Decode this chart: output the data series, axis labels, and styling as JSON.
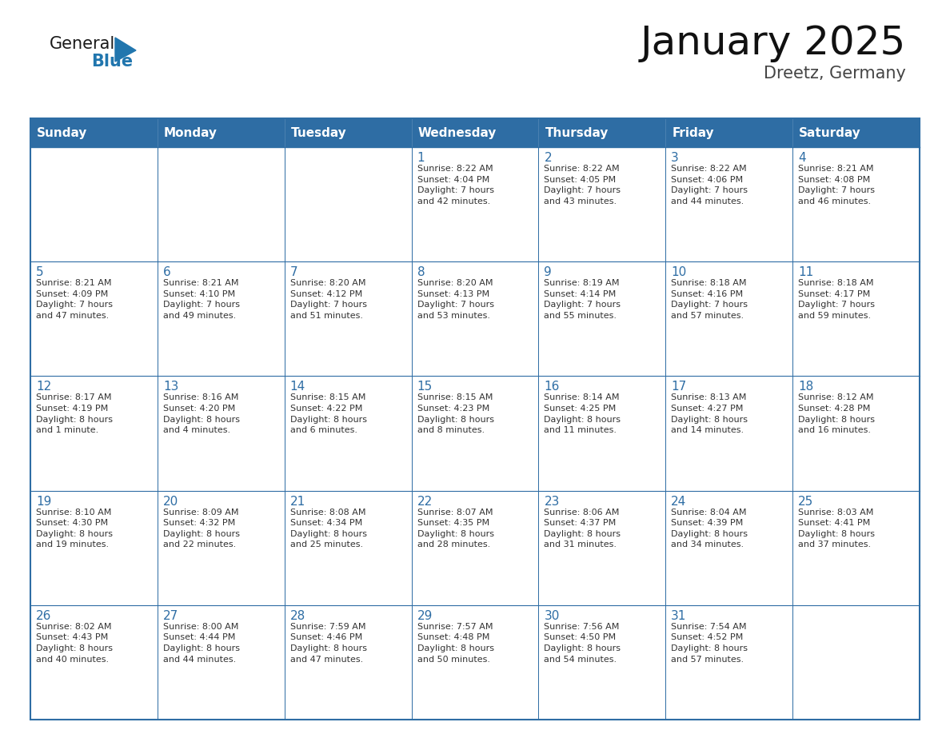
{
  "title": "January 2025",
  "subtitle": "Dreetz, Germany",
  "header_color": "#2E6DA4",
  "header_text_color": "#FFFFFF",
  "cell_bg_color": "#FFFFFF",
  "border_color": "#2E6DA4",
  "text_color": "#333333",
  "day_num_color": "#2E6DA4",
  "days_of_week": [
    "Sunday",
    "Monday",
    "Tuesday",
    "Wednesday",
    "Thursday",
    "Friday",
    "Saturday"
  ],
  "weeks": [
    [
      {
        "day": "",
        "info": ""
      },
      {
        "day": "",
        "info": ""
      },
      {
        "day": "",
        "info": ""
      },
      {
        "day": "1",
        "info": "Sunrise: 8:22 AM\nSunset: 4:04 PM\nDaylight: 7 hours\nand 42 minutes."
      },
      {
        "day": "2",
        "info": "Sunrise: 8:22 AM\nSunset: 4:05 PM\nDaylight: 7 hours\nand 43 minutes."
      },
      {
        "day": "3",
        "info": "Sunrise: 8:22 AM\nSunset: 4:06 PM\nDaylight: 7 hours\nand 44 minutes."
      },
      {
        "day": "4",
        "info": "Sunrise: 8:21 AM\nSunset: 4:08 PM\nDaylight: 7 hours\nand 46 minutes."
      }
    ],
    [
      {
        "day": "5",
        "info": "Sunrise: 8:21 AM\nSunset: 4:09 PM\nDaylight: 7 hours\nand 47 minutes."
      },
      {
        "day": "6",
        "info": "Sunrise: 8:21 AM\nSunset: 4:10 PM\nDaylight: 7 hours\nand 49 minutes."
      },
      {
        "day": "7",
        "info": "Sunrise: 8:20 AM\nSunset: 4:12 PM\nDaylight: 7 hours\nand 51 minutes."
      },
      {
        "day": "8",
        "info": "Sunrise: 8:20 AM\nSunset: 4:13 PM\nDaylight: 7 hours\nand 53 minutes."
      },
      {
        "day": "9",
        "info": "Sunrise: 8:19 AM\nSunset: 4:14 PM\nDaylight: 7 hours\nand 55 minutes."
      },
      {
        "day": "10",
        "info": "Sunrise: 8:18 AM\nSunset: 4:16 PM\nDaylight: 7 hours\nand 57 minutes."
      },
      {
        "day": "11",
        "info": "Sunrise: 8:18 AM\nSunset: 4:17 PM\nDaylight: 7 hours\nand 59 minutes."
      }
    ],
    [
      {
        "day": "12",
        "info": "Sunrise: 8:17 AM\nSunset: 4:19 PM\nDaylight: 8 hours\nand 1 minute."
      },
      {
        "day": "13",
        "info": "Sunrise: 8:16 AM\nSunset: 4:20 PM\nDaylight: 8 hours\nand 4 minutes."
      },
      {
        "day": "14",
        "info": "Sunrise: 8:15 AM\nSunset: 4:22 PM\nDaylight: 8 hours\nand 6 minutes."
      },
      {
        "day": "15",
        "info": "Sunrise: 8:15 AM\nSunset: 4:23 PM\nDaylight: 8 hours\nand 8 minutes."
      },
      {
        "day": "16",
        "info": "Sunrise: 8:14 AM\nSunset: 4:25 PM\nDaylight: 8 hours\nand 11 minutes."
      },
      {
        "day": "17",
        "info": "Sunrise: 8:13 AM\nSunset: 4:27 PM\nDaylight: 8 hours\nand 14 minutes."
      },
      {
        "day": "18",
        "info": "Sunrise: 8:12 AM\nSunset: 4:28 PM\nDaylight: 8 hours\nand 16 minutes."
      }
    ],
    [
      {
        "day": "19",
        "info": "Sunrise: 8:10 AM\nSunset: 4:30 PM\nDaylight: 8 hours\nand 19 minutes."
      },
      {
        "day": "20",
        "info": "Sunrise: 8:09 AM\nSunset: 4:32 PM\nDaylight: 8 hours\nand 22 minutes."
      },
      {
        "day": "21",
        "info": "Sunrise: 8:08 AM\nSunset: 4:34 PM\nDaylight: 8 hours\nand 25 minutes."
      },
      {
        "day": "22",
        "info": "Sunrise: 8:07 AM\nSunset: 4:35 PM\nDaylight: 8 hours\nand 28 minutes."
      },
      {
        "day": "23",
        "info": "Sunrise: 8:06 AM\nSunset: 4:37 PM\nDaylight: 8 hours\nand 31 minutes."
      },
      {
        "day": "24",
        "info": "Sunrise: 8:04 AM\nSunset: 4:39 PM\nDaylight: 8 hours\nand 34 minutes."
      },
      {
        "day": "25",
        "info": "Sunrise: 8:03 AM\nSunset: 4:41 PM\nDaylight: 8 hours\nand 37 minutes."
      }
    ],
    [
      {
        "day": "26",
        "info": "Sunrise: 8:02 AM\nSunset: 4:43 PM\nDaylight: 8 hours\nand 40 minutes."
      },
      {
        "day": "27",
        "info": "Sunrise: 8:00 AM\nSunset: 4:44 PM\nDaylight: 8 hours\nand 44 minutes."
      },
      {
        "day": "28",
        "info": "Sunrise: 7:59 AM\nSunset: 4:46 PM\nDaylight: 8 hours\nand 47 minutes."
      },
      {
        "day": "29",
        "info": "Sunrise: 7:57 AM\nSunset: 4:48 PM\nDaylight: 8 hours\nand 50 minutes."
      },
      {
        "day": "30",
        "info": "Sunrise: 7:56 AM\nSunset: 4:50 PM\nDaylight: 8 hours\nand 54 minutes."
      },
      {
        "day": "31",
        "info": "Sunrise: 7:54 AM\nSunset: 4:52 PM\nDaylight: 8 hours\nand 57 minutes."
      },
      {
        "day": "",
        "info": ""
      }
    ]
  ],
  "logo_text_general": "General",
  "logo_text_blue": "Blue",
  "logo_color_general": "#1a1a1a",
  "logo_color_blue": "#2176AE",
  "logo_triangle_color": "#2176AE",
  "title_fontsize": 36,
  "subtitle_fontsize": 15,
  "header_fontsize": 11,
  "day_num_fontsize": 11,
  "cell_text_fontsize": 8
}
